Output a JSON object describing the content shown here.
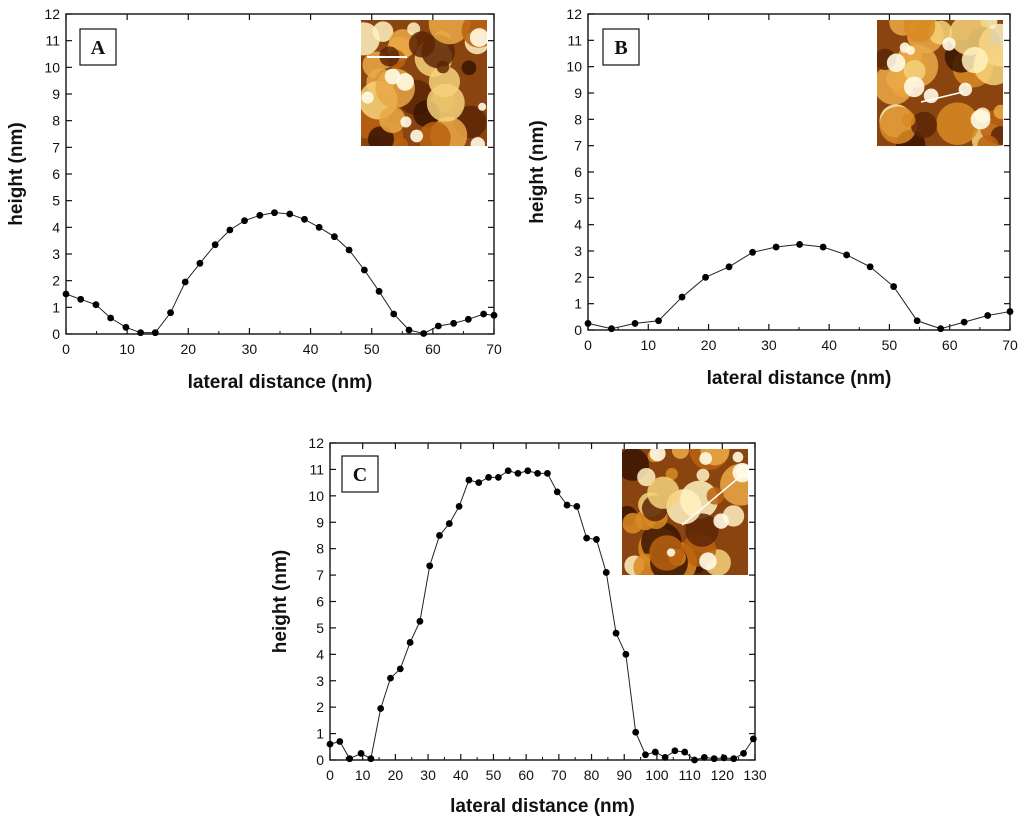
{
  "chart_data": [
    {
      "id": "A",
      "type": "line",
      "panel_label": "A",
      "xlabel": "lateral distance (nm)",
      "ylabel": "height (nm)",
      "xlim": [
        0,
        70
      ],
      "ylim": [
        0,
        12
      ],
      "xticks": [
        0,
        10,
        20,
        30,
        40,
        50,
        60,
        70
      ],
      "yticks": [
        0,
        1,
        2,
        3,
        4,
        5,
        6,
        7,
        8,
        9,
        10,
        11,
        12
      ],
      "marker": "circle",
      "x": [
        0,
        2.4,
        4.9,
        7.3,
        9.8,
        12.2,
        14.6,
        17.1,
        19.5,
        21.9,
        24.4,
        26.8,
        29.2,
        31.7,
        34.1,
        36.6,
        39,
        41.4,
        43.9,
        46.3,
        48.8,
        51.2,
        53.6,
        56.1,
        58.5,
        60.9,
        63.4,
        65.8,
        68.3,
        70
      ],
      "y": [
        1.5,
        1.3,
        1.1,
        0.6,
        0.25,
        0.05,
        0.05,
        0.8,
        1.95,
        2.65,
        3.35,
        3.9,
        4.25,
        4.45,
        4.55,
        4.5,
        4.3,
        4.0,
        3.65,
        3.15,
        2.4,
        1.6,
        0.75,
        0.15,
        0.02,
        0.3,
        0.4,
        0.55,
        0.75,
        0.7
      ],
      "inset": {
        "scan_line": "horizontal"
      }
    },
    {
      "id": "B",
      "type": "line",
      "panel_label": "B",
      "xlabel": "lateral distance (nm)",
      "ylabel": "height (nm)",
      "xlim": [
        0,
        70
      ],
      "ylim": [
        0,
        12
      ],
      "xticks": [
        0,
        10,
        20,
        30,
        40,
        50,
        60,
        70
      ],
      "yticks": [
        0,
        1,
        2,
        3,
        4,
        5,
        6,
        7,
        8,
        9,
        10,
        11,
        12
      ],
      "marker": "circle",
      "x": [
        0,
        3.9,
        7.8,
        11.7,
        15.6,
        19.5,
        23.4,
        27.3,
        31.2,
        35.1,
        39,
        42.9,
        46.8,
        50.7,
        54.6,
        58.5,
        62.4,
        66.3,
        70
      ],
      "y": [
        0.25,
        0.05,
        0.25,
        0.35,
        1.25,
        2.0,
        2.4,
        2.95,
        3.15,
        3.25,
        3.15,
        2.85,
        2.4,
        1.65,
        0.35,
        0.05,
        0.3,
        0.55,
        0.7
      ],
      "inset": {
        "scan_line": "diagonal"
      }
    },
    {
      "id": "C",
      "type": "line",
      "panel_label": "C",
      "xlabel": "lateral distance (nm)",
      "ylabel": "height (nm)",
      "xlim": [
        0,
        130
      ],
      "ylim": [
        0,
        12
      ],
      "xticks": [
        0,
        10,
        20,
        30,
        40,
        50,
        60,
        70,
        80,
        90,
        100,
        110,
        120,
        130
      ],
      "yticks": [
        0,
        1,
        2,
        3,
        4,
        5,
        6,
        7,
        8,
        9,
        10,
        11,
        12
      ],
      "marker": "circle",
      "x": [
        0,
        3,
        6,
        9.5,
        12.5,
        15.5,
        18.5,
        21.5,
        24.5,
        27.5,
        30.5,
        33.5,
        36.5,
        39.5,
        42.5,
        45.5,
        48.5,
        51.5,
        54.5,
        57.5,
        60.5,
        63.5,
        66.5,
        69.5,
        72.5,
        75.5,
        78.5,
        81.5,
        84.5,
        87.5,
        90.5,
        93.5,
        96.5,
        99.5,
        102.5,
        105.5,
        108.5,
        111.5,
        114.5,
        117.5,
        120.5,
        123.5,
        126.5,
        129.5
      ],
      "y": [
        0.6,
        0.7,
        0.05,
        0.25,
        0.05,
        1.95,
        3.1,
        3.45,
        4.45,
        5.25,
        7.35,
        8.5,
        8.95,
        9.6,
        10.6,
        10.5,
        10.7,
        10.7,
        10.95,
        10.85,
        10.95,
        10.85,
        10.85,
        10.15,
        9.65,
        9.6,
        8.4,
        8.35,
        7.1,
        4.8,
        4.0,
        1.05,
        0.2,
        0.3,
        0.1,
        0.35,
        0.3,
        0.0,
        0.1,
        0.05,
        0.08,
        0.05,
        0.25,
        0.8
      ],
      "inset": {
        "scan_line": "diagonal"
      }
    }
  ]
}
